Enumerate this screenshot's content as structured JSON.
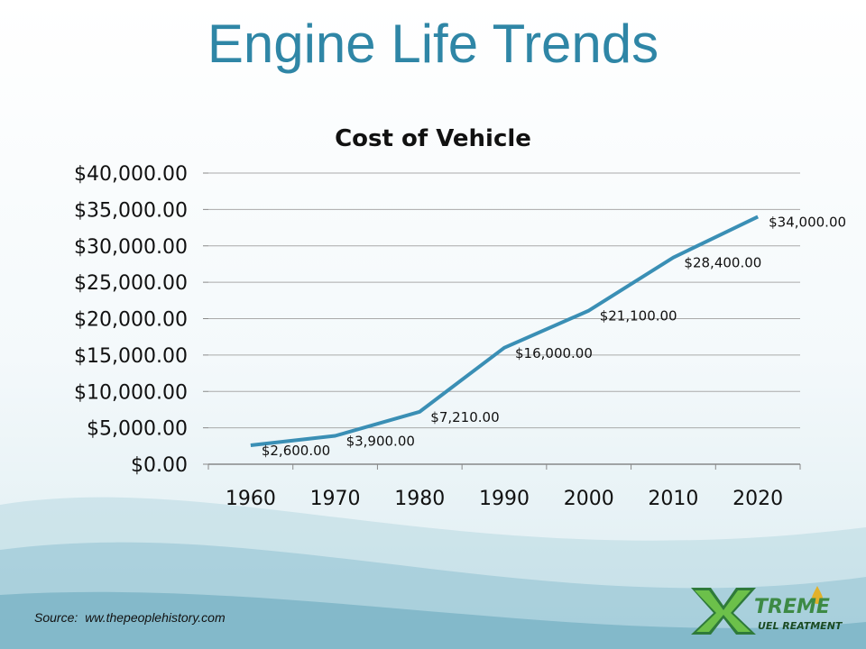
{
  "slide": {
    "title": "Engine Life Trends",
    "source_label": "Source:",
    "source_text": "ww.thepeoplehistory.com"
  },
  "logo": {
    "brand_main": "TREME",
    "brand_sub": "UEL REATMENT",
    "letter_x": "X",
    "letter_f": "F",
    "letter_t": "T"
  },
  "chart_data": {
    "type": "line",
    "title": "Cost of Vehicle",
    "categories": [
      "1960",
      "1970",
      "1980",
      "1990",
      "2000",
      "2010",
      "2020"
    ],
    "values": [
      2600,
      3900,
      7210,
      16000,
      21100,
      28400,
      34000
    ],
    "data_labels": [
      "$2,600.00",
      "$3,900.00",
      "$7,210.00",
      "$16,000.00",
      "$21,100.00",
      "$28,400.00",
      "$34,000.00"
    ],
    "y_ticks": [
      {
        "value": 0,
        "label": "$0.00"
      },
      {
        "value": 5000,
        "label": "$5,000.00"
      },
      {
        "value": 10000,
        "label": "$10,000.00"
      },
      {
        "value": 15000,
        "label": "$15,000.00"
      },
      {
        "value": 20000,
        "label": "$20,000.00"
      },
      {
        "value": 25000,
        "label": "$25,000.00"
      },
      {
        "value": 30000,
        "label": "$30,000.00"
      },
      {
        "value": 35000,
        "label": "$35,000.00"
      },
      {
        "value": 40000,
        "label": "$40,000.00"
      }
    ],
    "ylim": [
      0,
      40000
    ],
    "xlabel": "",
    "ylabel": "",
    "grid": true,
    "legend": "none",
    "line_color": "#3a8fb5"
  }
}
